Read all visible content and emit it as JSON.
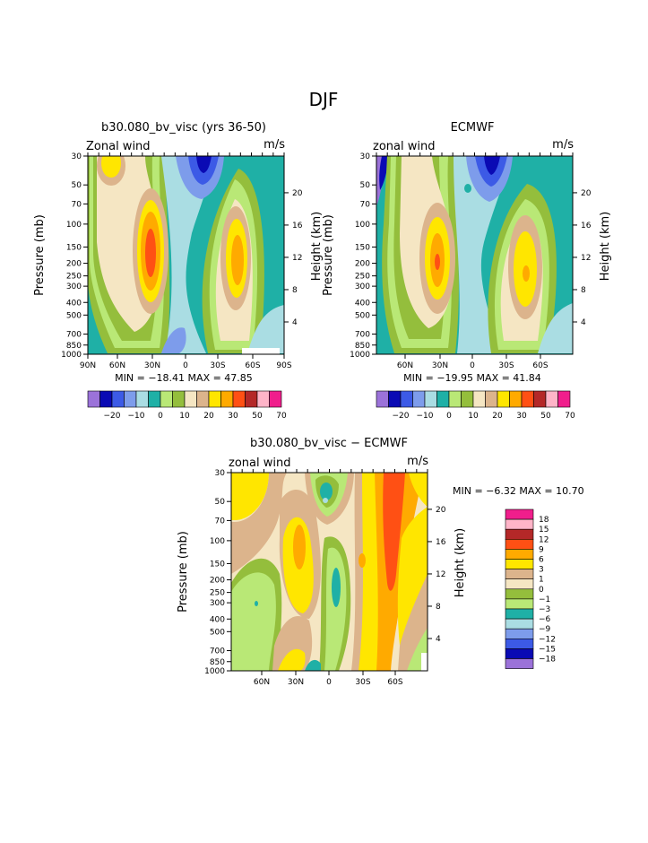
{
  "page_title": "DJF",
  "palette": {
    "lightpurple": "#9b72d9",
    "navy": "#0a0ab4",
    "blue": "#3c5ae6",
    "cornflower": "#7d9ceb",
    "paleblue": "#aadde3",
    "teal": "#1fb0a6",
    "lightgreen": "#b9e876",
    "olive": "#94be3c",
    "cream": "#f5e6c3",
    "tan": "#dcb48c",
    "yellow": "#ffe600",
    "orange": "#ffaa00",
    "orangered": "#ff5014",
    "darkred": "#b42828",
    "pink": "#ffb4c8",
    "magenta": "#f01e8c"
  },
  "chart_data": [
    {
      "type": "heatmap",
      "title": "b30.080_bv_visc (yrs 36-50)",
      "left_label": "Zonal wind",
      "right_label": "m/s",
      "ylabel": "Pressure (mb)",
      "ylabel_right": "Height (km)",
      "y_ticks": [
        "30",
        "50",
        "70",
        "100",
        "150",
        "200",
        "250",
        "300",
        "400",
        "500",
        "700",
        "850",
        "1000"
      ],
      "y_ticks_right": [
        "20",
        "16",
        "12",
        "8",
        "4"
      ],
      "x_ticks": [
        "90N",
        "60N",
        "30N",
        "0",
        "30S",
        "60S",
        "90S"
      ],
      "min_max": "MIN = −18.41   MAX =   47.85",
      "colorbar": {
        "labels": [
          "−20",
          "−10",
          "0",
          "10",
          "20",
          "30",
          "50",
          "70"
        ],
        "colors": [
          "#9b72d9",
          "#0a0ab4",
          "#3c5ae6",
          "#7d9ceb",
          "#aadde3",
          "#1fb0a6",
          "#b9e876",
          "#94be3c",
          "#f5e6c3",
          "#dcb48c",
          "#ffe600",
          "#ffaa00",
          "#ff5014",
          "#b42828",
          "#ffb4c8",
          "#f01e8c"
        ]
      }
    },
    {
      "type": "heatmap",
      "title": "ECMWF",
      "left_label": "zonal wind",
      "right_label": "m/s",
      "ylabel": "Pressure (mb)",
      "ylabel_right": "Height (km)",
      "y_ticks": [
        "30",
        "50",
        "70",
        "100",
        "150",
        "200",
        "250",
        "300",
        "400",
        "500",
        "700",
        "850",
        "1000"
      ],
      "y_ticks_right": [
        "20",
        "16",
        "12",
        "8",
        "4"
      ],
      "x_ticks": [
        "60N",
        "30N",
        "0",
        "30S",
        "60S"
      ],
      "min_max": "MIN = −19.95   MAX =   41.84",
      "colorbar": {
        "labels": [
          "−20",
          "−10",
          "0",
          "10",
          "20",
          "30",
          "50",
          "70"
        ],
        "colors": [
          "#9b72d9",
          "#0a0ab4",
          "#3c5ae6",
          "#7d9ceb",
          "#aadde3",
          "#1fb0a6",
          "#b9e876",
          "#94be3c",
          "#f5e6c3",
          "#dcb48c",
          "#ffe600",
          "#ffaa00",
          "#ff5014",
          "#b42828",
          "#ffb4c8",
          "#f01e8c"
        ]
      }
    },
    {
      "type": "heatmap",
      "title": "b30.080_bv_visc − ECMWF",
      "left_label": "zonal wind",
      "right_label": "m/s",
      "ylabel": "Pressure (mb)",
      "ylabel_right": "Height (km)",
      "y_ticks": [
        "30",
        "50",
        "70",
        "100",
        "150",
        "200",
        "250",
        "300",
        "400",
        "500",
        "700",
        "850",
        "1000"
      ],
      "y_ticks_right": [
        "20",
        "16",
        "12",
        "8",
        "4"
      ],
      "x_ticks": [
        "60N",
        "30N",
        "0",
        "30S",
        "60S"
      ],
      "min_max": "MIN =   −6.32   MAX =   10.70",
      "colorbar": {
        "labels": [
          "18",
          "15",
          "12",
          "9",
          "6",
          "3",
          "1",
          "0",
          "−1",
          "−3",
          "−6",
          "−9",
          "−12",
          "−15",
          "−18"
        ],
        "colors": [
          "#f01e8c",
          "#ffb4c8",
          "#b42828",
          "#ff5014",
          "#ffaa00",
          "#ffe600",
          "#dcb48c",
          "#f5e6c3",
          "#94be3c",
          "#b9e876",
          "#1fb0a6",
          "#aadde3",
          "#7d9ceb",
          "#3c5ae6",
          "#0a0ab4",
          "#9b72d9"
        ]
      }
    }
  ]
}
